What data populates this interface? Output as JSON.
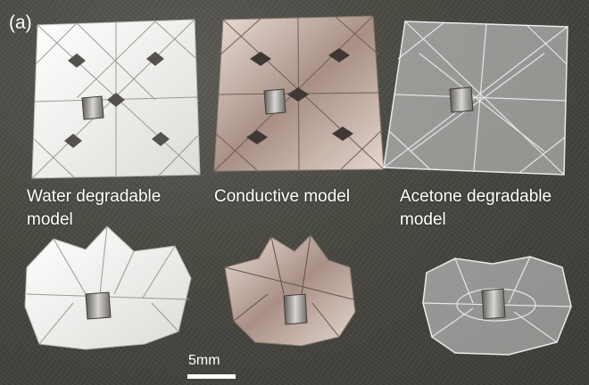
{
  "panel_label": "(a)",
  "captions": {
    "water_line1": "Water degradable",
    "water_line2": "model",
    "conductive": "Conductive model",
    "acetone_line1": "Acetone degradable",
    "acetone_line2": "model"
  },
  "scale_bar": {
    "label": "5mm"
  },
  "colors": {
    "background": "#47463f",
    "paper_white": "#f4f4f2",
    "metallic": "#c9b7ae",
    "clear": "#e8ecec",
    "magnet": "#8d8a86"
  }
}
